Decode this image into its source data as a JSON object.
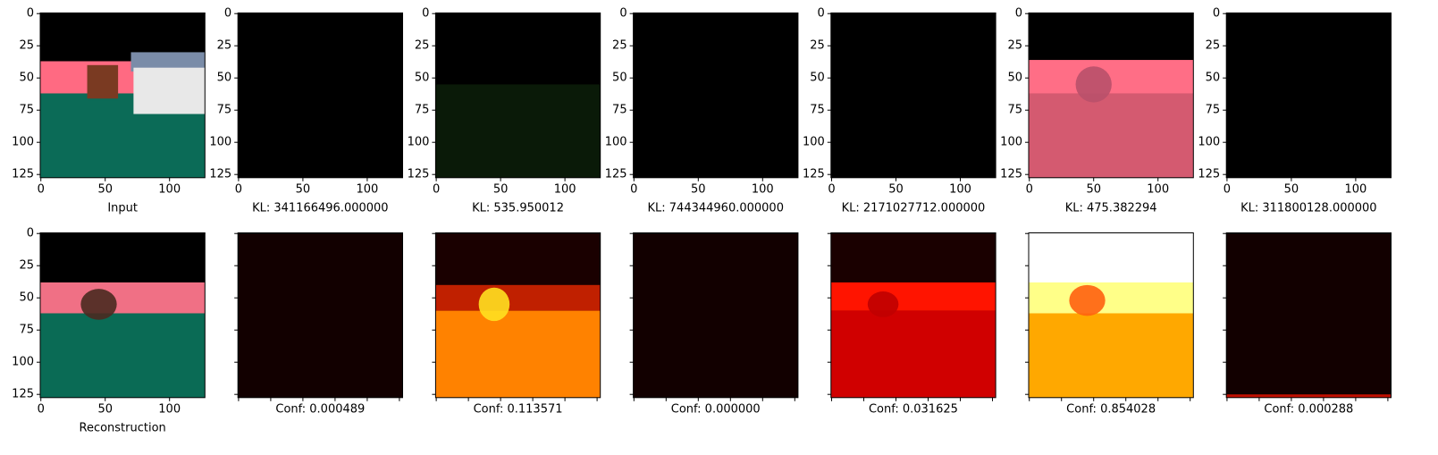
{
  "chart_data": [
    {
      "type": "image",
      "xlabel": "Input",
      "xlim": [
        -0.5,
        127.5
      ],
      "ylim": [
        127.5,
        -0.5
      ],
      "xticks": [
        0,
        50,
        100
      ],
      "yticks": [
        0,
        25,
        50,
        75,
        100,
        125
      ],
      "tick_labels": true
    },
    {
      "type": "image",
      "xlabel": "KL: 341166496.000000",
      "xlim": [
        -0.5,
        127.5
      ],
      "ylim": [
        127.5,
        -0.5
      ],
      "xticks": [
        0,
        50,
        100
      ],
      "yticks": [
        0,
        25,
        50,
        75,
        100,
        125
      ],
      "tick_labels": true
    },
    {
      "type": "image",
      "xlabel": "KL: 535.950012",
      "xlim": [
        -0.5,
        127.5
      ],
      "ylim": [
        127.5,
        -0.5
      ],
      "xticks": [
        0,
        50,
        100
      ],
      "yticks": [
        0,
        25,
        50,
        75,
        100,
        125
      ],
      "tick_labels": true
    },
    {
      "type": "image",
      "xlabel": "KL: 744344960.000000",
      "xlim": [
        -0.5,
        127.5
      ],
      "ylim": [
        127.5,
        -0.5
      ],
      "xticks": [
        0,
        50,
        100
      ],
      "yticks": [
        0,
        25,
        50,
        75,
        100,
        125
      ],
      "tick_labels": true
    },
    {
      "type": "image",
      "xlabel": "KL: 2171027712.000000",
      "xlim": [
        -0.5,
        127.5
      ],
      "ylim": [
        127.5,
        -0.5
      ],
      "xticks": [
        0,
        50,
        100
      ],
      "yticks": [
        0,
        25,
        50,
        75,
        100,
        125
      ],
      "tick_labels": true
    },
    {
      "type": "image",
      "xlabel": "KL: 475.382294",
      "xlim": [
        -0.5,
        127.5
      ],
      "ylim": [
        127.5,
        -0.5
      ],
      "xticks": [
        0,
        50,
        100
      ],
      "yticks": [
        0,
        25,
        50,
        75,
        100,
        125
      ],
      "tick_labels": true
    },
    {
      "type": "image",
      "xlabel": "KL: 311800128.000000",
      "xlim": [
        -0.5,
        127.5
      ],
      "ylim": [
        127.5,
        -0.5
      ],
      "xticks": [
        0,
        50,
        100
      ],
      "yticks": [
        0,
        25,
        50,
        75,
        100,
        125
      ],
      "tick_labels": true
    },
    {
      "type": "image",
      "xlabel": "Reconstruction",
      "xlim": [
        -0.5,
        127.5
      ],
      "ylim": [
        127.5,
        -0.5
      ],
      "xticks": [
        0,
        50,
        100
      ],
      "yticks": [
        0,
        25,
        50,
        75,
        100,
        125
      ],
      "tick_labels": true
    },
    {
      "type": "image",
      "xlabel": "Conf: 0.000489",
      "xlim": [
        -0.5,
        127.5
      ],
      "ylim": [
        127.5,
        -0.5
      ],
      "xticks": [
        0,
        25,
        50,
        75,
        100,
        125
      ],
      "yticks": [
        0,
        25,
        50,
        75,
        100,
        125
      ],
      "tick_labels": false
    },
    {
      "type": "image",
      "xlabel": "Conf: 0.113571",
      "xlim": [
        -0.5,
        127.5
      ],
      "ylim": [
        127.5,
        -0.5
      ],
      "xticks": [
        0,
        25,
        50,
        75,
        100,
        125
      ],
      "yticks": [
        0,
        25,
        50,
        75,
        100,
        125
      ],
      "tick_labels": false
    },
    {
      "type": "image",
      "xlabel": "Conf: 0.000000",
      "xlim": [
        -0.5,
        127.5
      ],
      "ylim": [
        127.5,
        -0.5
      ],
      "xticks": [
        0,
        25,
        50,
        75,
        100,
        125
      ],
      "yticks": [
        0,
        25,
        50,
        75,
        100,
        125
      ],
      "tick_labels": false
    },
    {
      "type": "image",
      "xlabel": "Conf: 0.031625",
      "xlim": [
        -0.5,
        127.5
      ],
      "ylim": [
        127.5,
        -0.5
      ],
      "xticks": [
        0,
        25,
        50,
        75,
        100,
        125
      ],
      "yticks": [
        0,
        25,
        50,
        75,
        100,
        125
      ],
      "tick_labels": false
    },
    {
      "type": "image",
      "xlabel": "Conf: 0.854028",
      "xlim": [
        -0.5,
        127.5
      ],
      "ylim": [
        127.5,
        -0.5
      ],
      "xticks": [
        0,
        25,
        50,
        75,
        100,
        125
      ],
      "yticks": [
        0,
        25,
        50,
        75,
        100,
        125
      ],
      "tick_labels": false
    },
    {
      "type": "image",
      "xlabel": "Conf: 0.000288",
      "xlim": [
        -0.5,
        127.5
      ],
      "ylim": [
        127.5,
        -0.5
      ],
      "xticks": [
        0,
        25,
        50,
        75,
        100,
        125
      ],
      "yticks": [
        0,
        25,
        50,
        75,
        100,
        125
      ],
      "tick_labels": false
    }
  ]
}
